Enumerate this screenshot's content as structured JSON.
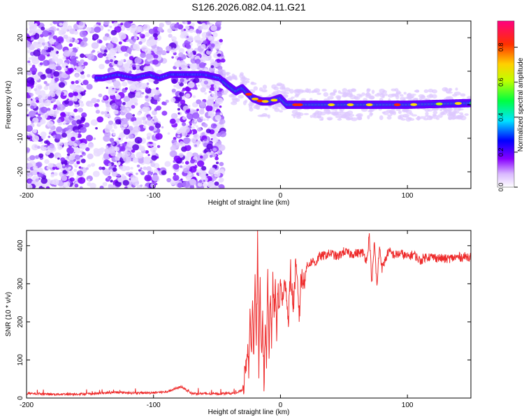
{
  "title": "S126.2026.082.04.11.G21",
  "chart_data": [
    {
      "type": "heatmap",
      "xlabel": "Height of straight line (km)",
      "ylabel": "Frequency (Hz)",
      "xlim": [
        -200,
        150
      ],
      "ylim": [
        -25,
        25
      ],
      "xticks": [
        -200,
        -100,
        0,
        100
      ],
      "yticks": [
        -20,
        -10,
        0,
        10,
        20
      ],
      "colorbar": {
        "label": "Normalized spectral amplitude",
        "range": [
          0.0,
          0.95
        ],
        "ticks": [
          0.0,
          0.2,
          0.4,
          0.6,
          0.8
        ],
        "tick_labels": [
          "0.0",
          "0.2",
          "0.4",
          "0.6",
          "0.8"
        ]
      },
      "ridge": {
        "x": [
          -140,
          -128,
          -115,
          -103,
          -95,
          -87,
          -75,
          -60,
          -48,
          -42,
          -35,
          -30,
          -22,
          -15,
          -8,
          0,
          5,
          15,
          30,
          60,
          100,
          150
        ],
        "frequency": [
          8,
          9,
          8,
          9,
          8,
          9,
          9,
          9,
          8,
          6,
          4,
          5,
          2,
          1,
          1,
          2,
          0,
          0,
          0,
          0,
          0,
          0.5
        ]
      },
      "noise_region": [
        -200,
        -45
      ]
    },
    {
      "type": "line",
      "xlabel": "Height of straight line (km)",
      "ylabel": "SNR (10 * v/v)",
      "xlim": [
        -200,
        150
      ],
      "ylim": [
        0,
        440
      ],
      "xticks": [
        -200,
        -100,
        0,
        100
      ],
      "yticks": [
        0,
        100,
        200,
        300,
        400
      ],
      "color": "#ee2c2c",
      "series": [
        {
          "name": "SNR",
          "x": [
            -200,
            -180,
            -150,
            -130,
            -110,
            -90,
            -78,
            -70,
            -50,
            -35,
            -30,
            -28,
            -26,
            -25,
            -24,
            -23,
            -22,
            -21,
            -20,
            -19,
            -18,
            -17,
            -16,
            -15,
            -14,
            -13,
            -12,
            -11,
            -10,
            -9,
            -8,
            -7,
            -6,
            -5,
            -4,
            -3,
            -2,
            -1,
            0,
            2,
            4,
            6,
            8,
            10,
            12,
            14,
            15,
            16,
            18,
            20,
            22,
            25,
            28,
            30,
            35,
            40,
            45,
            50,
            55,
            60,
            65,
            68,
            70,
            72,
            74,
            76,
            78,
            80,
            85,
            90,
            95,
            100,
            105,
            110,
            115,
            120,
            130,
            140,
            150
          ],
          "y": [
            12,
            10,
            11,
            15,
            13,
            16,
            30,
            12,
            11,
            13,
            20,
            60,
            140,
            80,
            200,
            120,
            260,
            90,
            360,
            150,
            410,
            60,
            300,
            100,
            250,
            20,
            180,
            80,
            330,
            120,
            260,
            160,
            300,
            220,
            290,
            180,
            280,
            230,
            300,
            250,
            320,
            200,
            330,
            240,
            340,
            270,
            210,
            320,
            300,
            340,
            350,
            360,
            355,
            370,
            375,
            380,
            370,
            385,
            378,
            380,
            382,
            360,
            430,
            300,
            410,
            290,
            400,
            340,
            385,
            375,
            380,
            370,
            378,
            360,
            372,
            370,
            365,
            370,
            372
          ]
        }
      ]
    }
  ]
}
